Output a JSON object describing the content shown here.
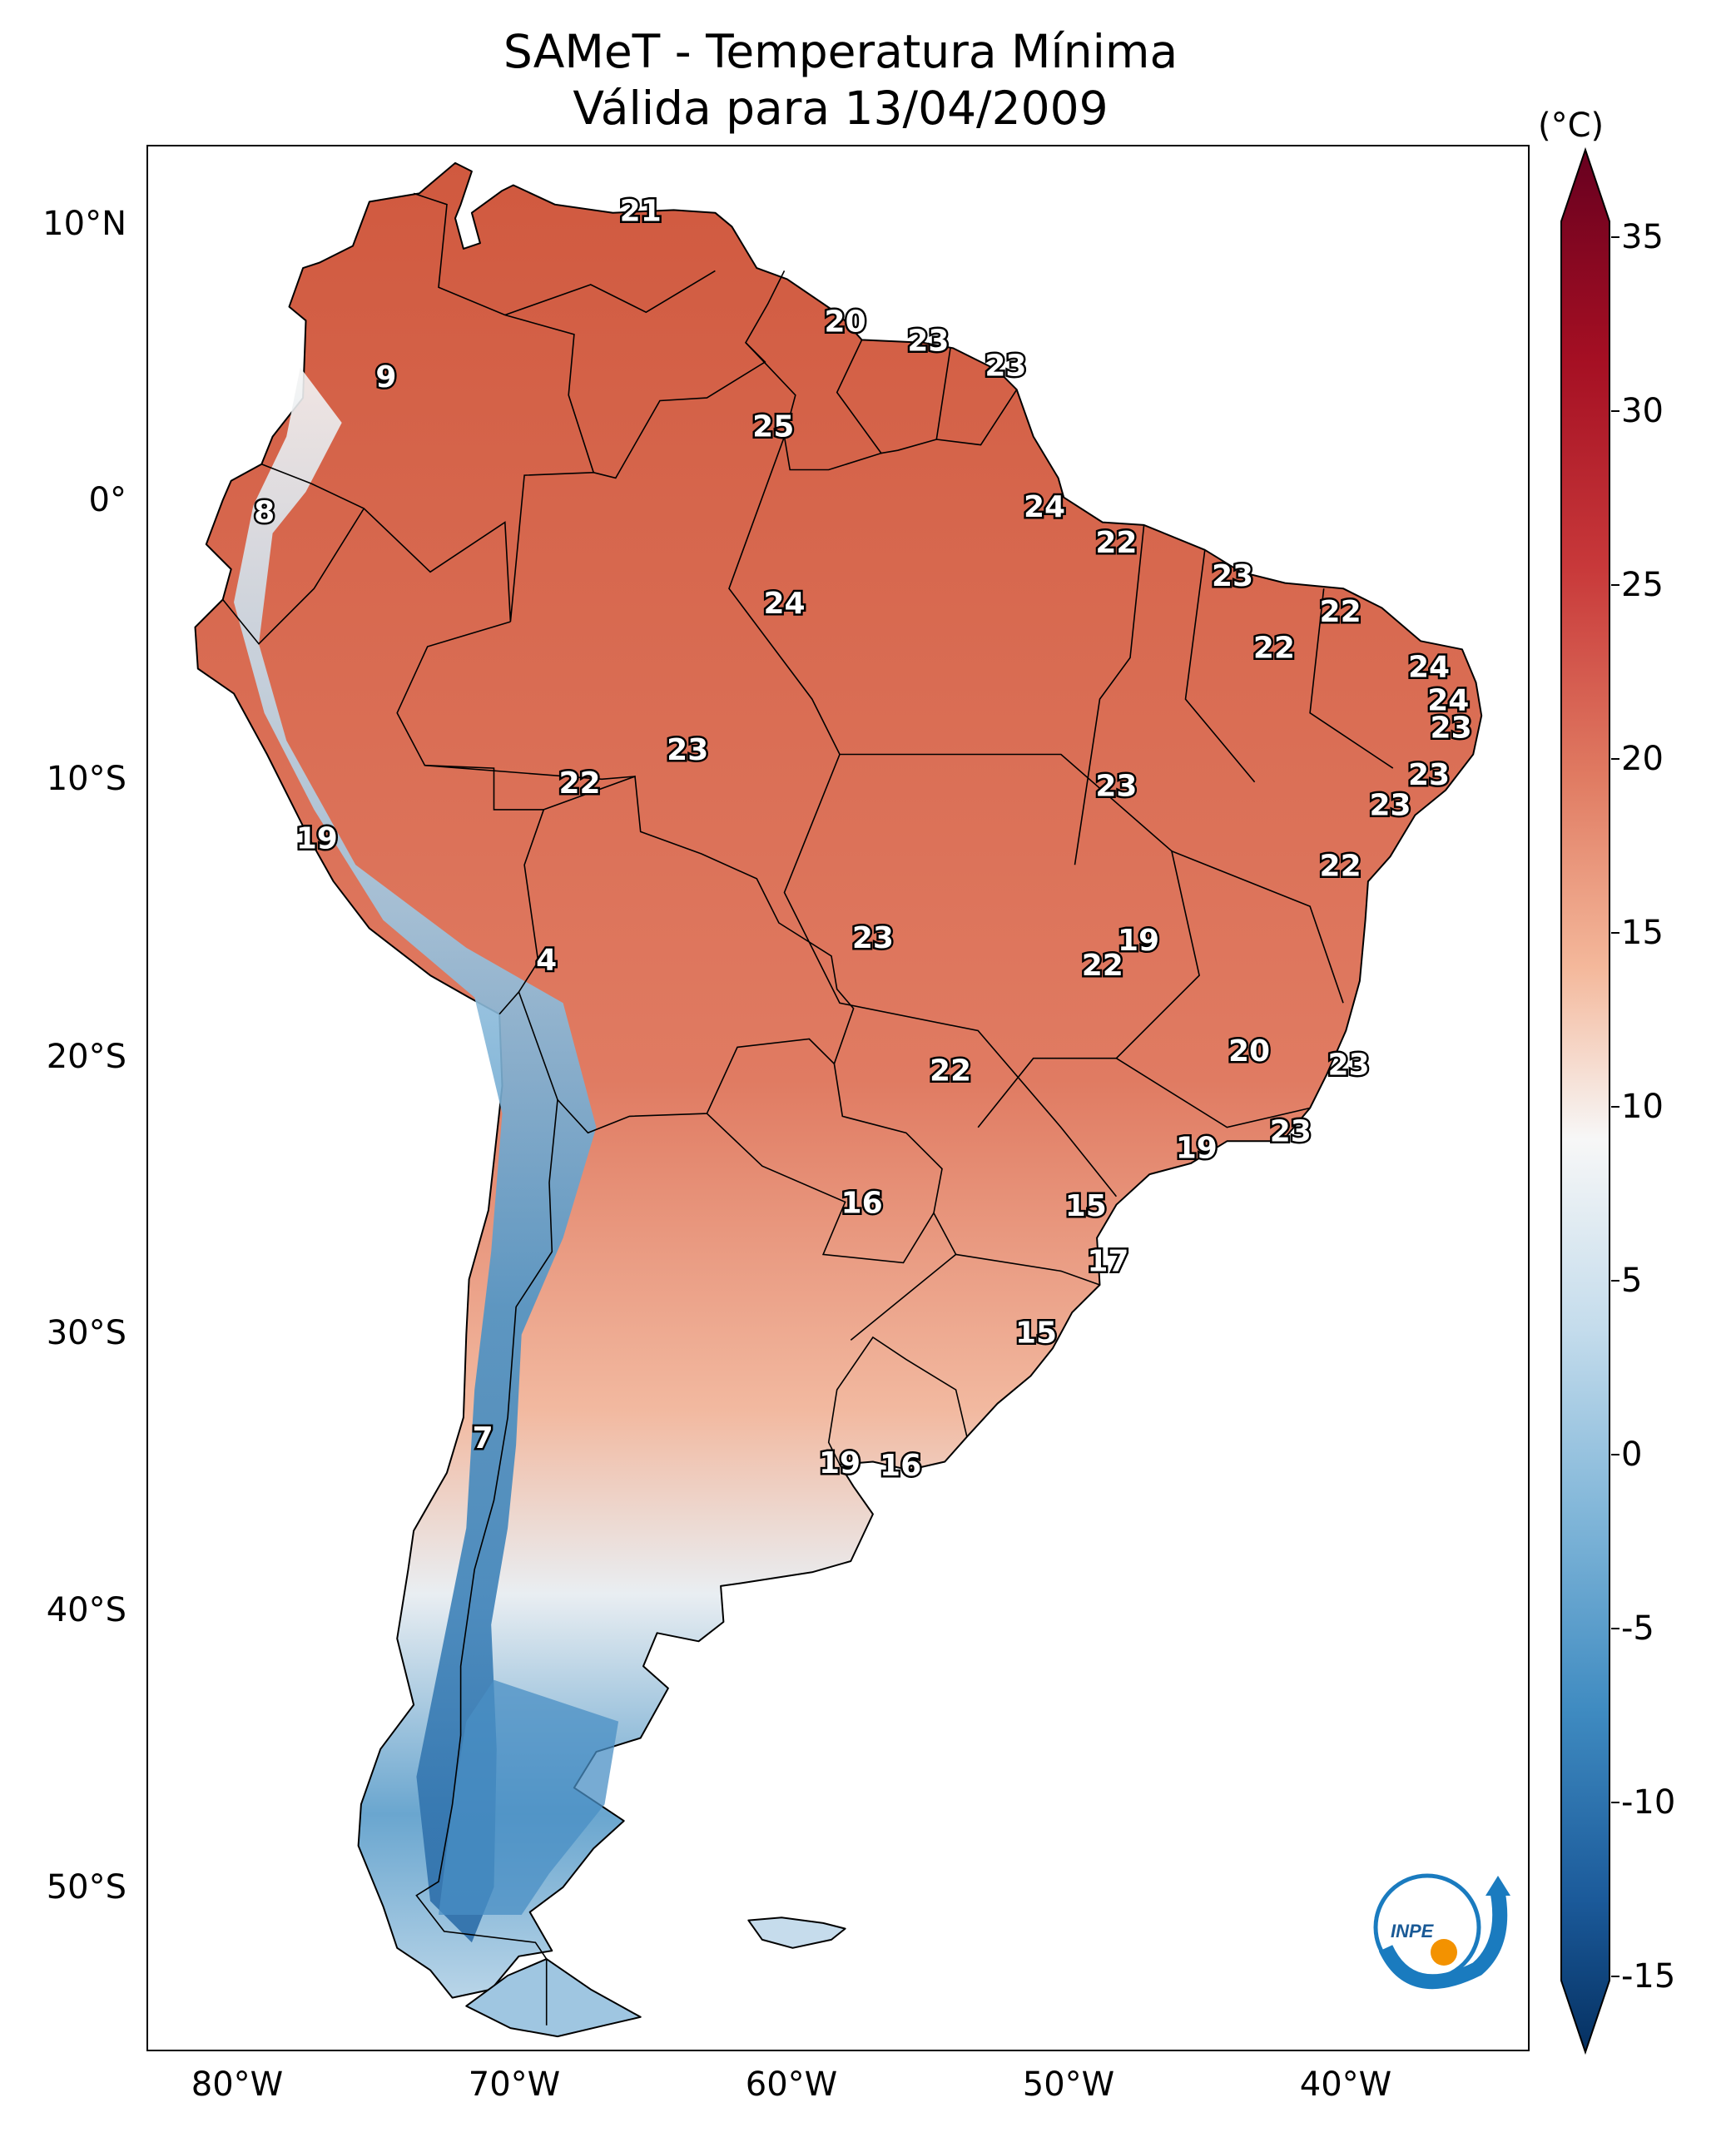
{
  "title": {
    "line1": "SAMeT - Temperatura Mínima",
    "line2": "Válida para 13/04/2009"
  },
  "axes": {
    "lat_labels": [
      "10°N",
      "0°",
      "10°S",
      "20°S",
      "30°S",
      "40°S",
      "50°S"
    ],
    "lon_labels": [
      "80°W",
      "70°W",
      "60°W",
      "50°W",
      "40°W"
    ],
    "lat_range": [
      -56,
      13
    ],
    "lon_range": [
      -83,
      -33
    ]
  },
  "colorbar": {
    "unit": "(°C)",
    "ticks": [
      "35",
      "30",
      "25",
      "20",
      "15",
      "10",
      "5",
      "0",
      "-5",
      "-10",
      "-15"
    ],
    "min": -17,
    "max": 38,
    "colors": {
      "max": "#67001f",
      "warm": "#d6604d",
      "mid": "#f7f7f7",
      "cool": "#4393c3",
      "min": "#053061"
    }
  },
  "value_labels": [
    {
      "text": "21",
      "lon": -65.2,
      "lat": 10.6
    },
    {
      "text": "20",
      "lon": -57.8,
      "lat": 6.6
    },
    {
      "text": "23",
      "lon": -54.8,
      "lat": 5.9
    },
    {
      "text": "23",
      "lon": -52.0,
      "lat": 5.0
    },
    {
      "text": "9",
      "lon": -74.4,
      "lat": 4.6
    },
    {
      "text": "25",
      "lon": -60.4,
      "lat": 2.8
    },
    {
      "text": "8",
      "lon": -78.8,
      "lat": -0.3
    },
    {
      "text": "24",
      "lon": -50.6,
      "lat": -0.1
    },
    {
      "text": "22",
      "lon": -48.0,
      "lat": -1.4
    },
    {
      "text": "23",
      "lon": -43.8,
      "lat": -2.6
    },
    {
      "text": "24",
      "lon": -60.0,
      "lat": -3.6
    },
    {
      "text": "22",
      "lon": -39.9,
      "lat": -3.9
    },
    {
      "text": "22",
      "lon": -42.3,
      "lat": -5.2
    },
    {
      "text": "24",
      "lon": -36.7,
      "lat": -5.9
    },
    {
      "text": "24",
      "lon": -36.0,
      "lat": -7.1
    },
    {
      "text": "23",
      "lon": -35.9,
      "lat": -8.1
    },
    {
      "text": "23",
      "lon": -63.5,
      "lat": -8.9
    },
    {
      "text": "23",
      "lon": -36.7,
      "lat": -9.8
    },
    {
      "text": "22",
      "lon": -67.4,
      "lat": -10.1
    },
    {
      "text": "23",
      "lon": -48.0,
      "lat": -10.2
    },
    {
      "text": "23",
      "lon": -38.1,
      "lat": -10.9
    },
    {
      "text": "19",
      "lon": -76.9,
      "lat": -12.1
    },
    {
      "text": "22",
      "lon": -39.9,
      "lat": -13.1
    },
    {
      "text": "23",
      "lon": -56.8,
      "lat": -15.7
    },
    {
      "text": "19",
      "lon": -47.2,
      "lat": -15.8
    },
    {
      "text": "4",
      "lon": -68.6,
      "lat": -16.5
    },
    {
      "text": "22",
      "lon": -48.5,
      "lat": -16.7
    },
    {
      "text": "20",
      "lon": -43.2,
      "lat": -19.8
    },
    {
      "text": "23",
      "lon": -39.6,
      "lat": -20.3
    },
    {
      "text": "22",
      "lon": -54.0,
      "lat": -20.5
    },
    {
      "text": "23",
      "lon": -41.7,
      "lat": -22.7
    },
    {
      "text": "19",
      "lon": -45.1,
      "lat": -23.3
    },
    {
      "text": "16",
      "lon": -57.2,
      "lat": -25.3
    },
    {
      "text": "15",
      "lon": -49.1,
      "lat": -25.4
    },
    {
      "text": "17",
      "lon": -48.3,
      "lat": -27.4
    },
    {
      "text": "15",
      "lon": -50.9,
      "lat": -30.0
    },
    {
      "text": "7",
      "lon": -70.9,
      "lat": -33.8
    },
    {
      "text": "19",
      "lon": -58.0,
      "lat": -34.7
    },
    {
      "text": "16",
      "lon": -55.8,
      "lat": -34.8
    }
  ],
  "logo": {
    "text": "INPE",
    "colors": {
      "ring": "#1a7bbf",
      "dot": "#f39200"
    }
  }
}
